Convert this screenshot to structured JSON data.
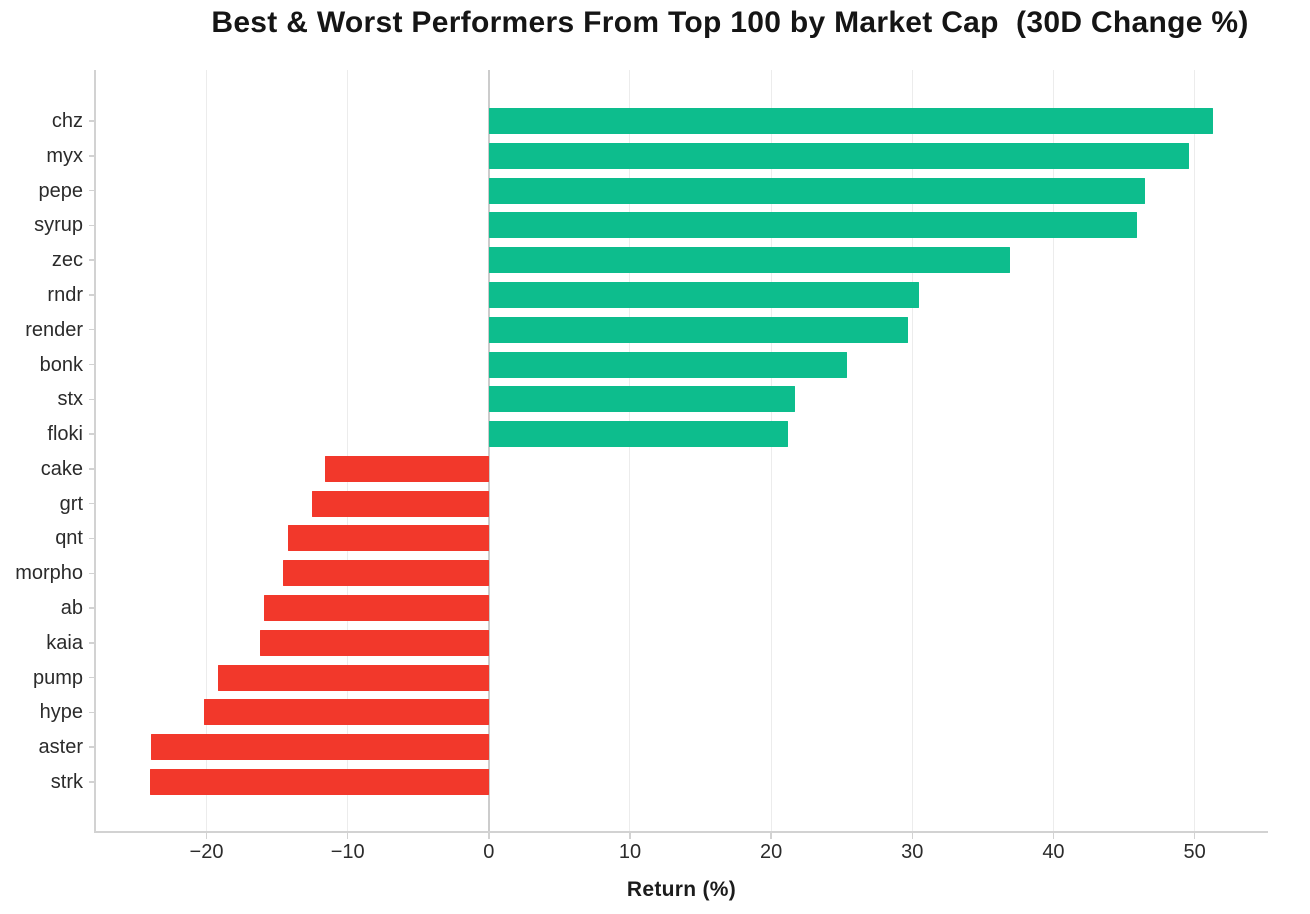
{
  "chart_data": {
    "type": "bar",
    "orientation": "horizontal",
    "title": "Best & Worst Performers From Top 100 by Market Cap  (30D Change %)",
    "xlabel": "Return (%)",
    "ylabel": "",
    "categories": [
      "chz",
      "myx",
      "pepe",
      "syrup",
      "zec",
      "rndr",
      "render",
      "bonk",
      "stx",
      "floki",
      "cake",
      "grt",
      "qnt",
      "morpho",
      "ab",
      "kaia",
      "pump",
      "hype",
      "aster",
      "strk"
    ],
    "values": [
      51.3,
      49.6,
      46.5,
      45.9,
      36.9,
      30.5,
      29.7,
      25.4,
      21.7,
      21.2,
      -11.6,
      -12.5,
      -14.2,
      -14.6,
      -15.9,
      -16.2,
      -19.2,
      -20.2,
      -23.9,
      -24.0
    ],
    "xticks": [
      -20,
      -10,
      0,
      10,
      20,
      30,
      40,
      50
    ],
    "xtick_labels": [
      "−20",
      "−10",
      "0",
      "10",
      "20",
      "30",
      "40",
      "50"
    ],
    "xlim": [
      -27.9,
      55.2
    ],
    "grid": true,
    "legend": false,
    "positive_color": "#0dbd8d",
    "negative_color": "#f2382b",
    "gridline_color": "#ececec",
    "zero_line_color": "#cccccc",
    "axis_color": "#d2d2d2",
    "background_color": "#ffffff"
  }
}
